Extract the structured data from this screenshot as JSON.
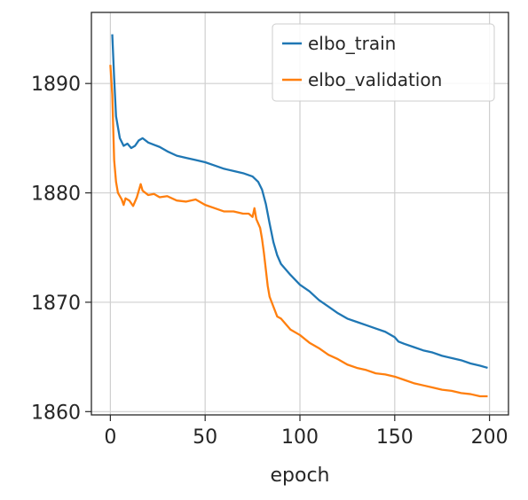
{
  "chart_data": {
    "type": "line",
    "xlabel": "epoch",
    "ylabel": "",
    "xlim": [
      -10,
      210
    ],
    "ylim": [
      1859.7,
      1896.5
    ],
    "xticks": [
      0,
      50,
      100,
      150,
      200
    ],
    "yticks": [
      1860,
      1870,
      1880,
      1890
    ],
    "grid": true,
    "legend_position": "top-right",
    "series": [
      {
        "name": "elbo_train",
        "color": "#1f77b4",
        "points": [
          [
            1,
            1894.5
          ],
          [
            2,
            1890.5
          ],
          [
            3,
            1887.0
          ],
          [
            5,
            1885.0
          ],
          [
            7,
            1884.3
          ],
          [
            9,
            1884.5
          ],
          [
            11,
            1884.1
          ],
          [
            13,
            1884.3
          ],
          [
            15,
            1884.8
          ],
          [
            17,
            1885.0
          ],
          [
            20,
            1884.6
          ],
          [
            23,
            1884.4
          ],
          [
            26,
            1884.2
          ],
          [
            30,
            1883.8
          ],
          [
            35,
            1883.4
          ],
          [
            40,
            1883.2
          ],
          [
            45,
            1883.0
          ],
          [
            50,
            1882.8
          ],
          [
            55,
            1882.5
          ],
          [
            60,
            1882.2
          ],
          [
            65,
            1882.0
          ],
          [
            70,
            1881.8
          ],
          [
            75,
            1881.5
          ],
          [
            78,
            1881.0
          ],
          [
            80,
            1880.3
          ],
          [
            82,
            1879.0
          ],
          [
            84,
            1877.2
          ],
          [
            86,
            1875.5
          ],
          [
            88,
            1874.3
          ],
          [
            90,
            1873.5
          ],
          [
            95,
            1872.5
          ],
          [
            100,
            1871.6
          ],
          [
            105,
            1871.0
          ],
          [
            110,
            1870.2
          ],
          [
            115,
            1869.6
          ],
          [
            120,
            1869.0
          ],
          [
            125,
            1868.5
          ],
          [
            130,
            1868.2
          ],
          [
            135,
            1867.9
          ],
          [
            140,
            1867.6
          ],
          [
            145,
            1867.3
          ],
          [
            150,
            1866.8
          ],
          [
            152,
            1866.4
          ],
          [
            155,
            1866.2
          ],
          [
            160,
            1865.9
          ],
          [
            165,
            1865.6
          ],
          [
            170,
            1865.4
          ],
          [
            175,
            1865.1
          ],
          [
            180,
            1864.9
          ],
          [
            185,
            1864.7
          ],
          [
            190,
            1864.4
          ],
          [
            195,
            1864.2
          ],
          [
            199,
            1864.0
          ]
        ]
      },
      {
        "name": "elbo_validation",
        "color": "#ff7f0e",
        "points": [
          [
            0,
            1891.7
          ],
          [
            1,
            1889.0
          ],
          [
            2,
            1883.0
          ],
          [
            3,
            1881.0
          ],
          [
            4,
            1880.0
          ],
          [
            6,
            1879.4
          ],
          [
            7,
            1878.9
          ],
          [
            8,
            1879.5
          ],
          [
            10,
            1879.3
          ],
          [
            12,
            1878.8
          ],
          [
            14,
            1879.6
          ],
          [
            16,
            1880.8
          ],
          [
            17,
            1880.2
          ],
          [
            20,
            1879.8
          ],
          [
            23,
            1879.9
          ],
          [
            26,
            1879.6
          ],
          [
            30,
            1879.7
          ],
          [
            35,
            1879.3
          ],
          [
            40,
            1879.2
          ],
          [
            45,
            1879.4
          ],
          [
            50,
            1878.9
          ],
          [
            55,
            1878.6
          ],
          [
            60,
            1878.3
          ],
          [
            65,
            1878.3
          ],
          [
            70,
            1878.1
          ],
          [
            73,
            1878.1
          ],
          [
            75,
            1877.8
          ],
          [
            76,
            1878.6
          ],
          [
            77,
            1877.6
          ],
          [
            79,
            1876.8
          ],
          [
            80,
            1875.8
          ],
          [
            81,
            1874.5
          ],
          [
            82,
            1873.0
          ],
          [
            83,
            1871.5
          ],
          [
            84,
            1870.5
          ],
          [
            86,
            1869.6
          ],
          [
            88,
            1868.7
          ],
          [
            90,
            1868.5
          ],
          [
            95,
            1867.5
          ],
          [
            100,
            1867.0
          ],
          [
            105,
            1866.3
          ],
          [
            110,
            1865.8
          ],
          [
            115,
            1865.2
          ],
          [
            120,
            1864.8
          ],
          [
            125,
            1864.3
          ],
          [
            130,
            1864.0
          ],
          [
            135,
            1863.8
          ],
          [
            140,
            1863.5
          ],
          [
            145,
            1863.4
          ],
          [
            150,
            1863.2
          ],
          [
            155,
            1862.9
          ],
          [
            160,
            1862.6
          ],
          [
            165,
            1862.4
          ],
          [
            170,
            1862.2
          ],
          [
            175,
            1862.0
          ],
          [
            180,
            1861.9
          ],
          [
            185,
            1861.7
          ],
          [
            190,
            1861.6
          ],
          [
            195,
            1861.4
          ],
          [
            199,
            1861.4
          ]
        ]
      }
    ]
  }
}
